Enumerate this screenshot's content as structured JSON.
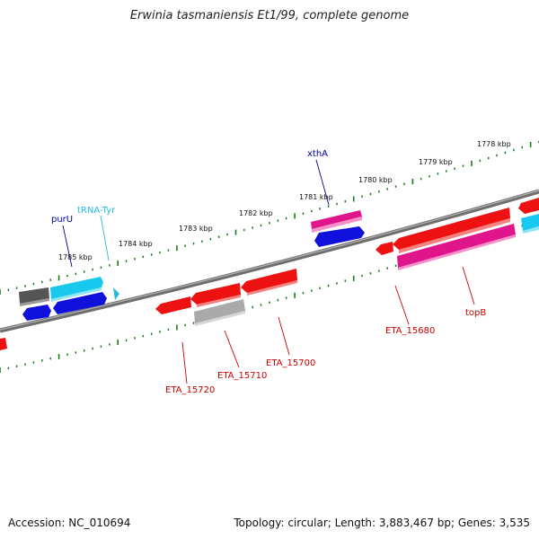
{
  "title": "Erwinia tasmaniensis Et1/99, complete genome",
  "footer": {
    "accession": "Accession: NC_010694",
    "summary": "Topology: circular; Length: 3,883,467 bp; Genes: 3,535"
  },
  "scale_labels": [
    "1778 kbp",
    "1779 kbp",
    "1780 kbp",
    "1781 kbp",
    "1782 kbp",
    "1783 kbp",
    "1784 kbp",
    "1785 kbp"
  ],
  "gene_labels": {
    "purU": "purU",
    "tRNA_Tyr": "tRNA-Tyr",
    "xthA": "xthA",
    "ETA_15720": "ETA_15720",
    "ETA_15710": "ETA_15710",
    "ETA_15700": "ETA_15700",
    "ETA_15680": "ETA_15680",
    "topB": "topB"
  },
  "colors": {
    "backbone": "#7a7a7a",
    "tick": "#1a7a1a",
    "red_gene": "#ee1111",
    "magenta_gene": "#e0158c",
    "blue_gene": "#1010dd",
    "cyan_gene": "#18c8ee",
    "grey_gene": "#aaaaaa",
    "darkgrey_gene": "#555555",
    "label_blue": "#000099",
    "label_cyan": "#22bbdd",
    "label_red": "#cc0000"
  }
}
